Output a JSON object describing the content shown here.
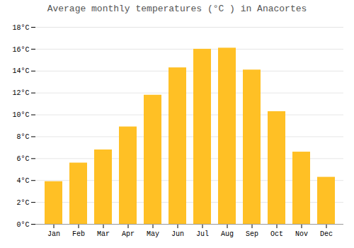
{
  "chart_data": {
    "type": "bar",
    "title": "Average monthly temperatures (°C ) in Anacortes",
    "categories": [
      "Jan",
      "Feb",
      "Mar",
      "Apr",
      "May",
      "Jun",
      "Jul",
      "Aug",
      "Sep",
      "Oct",
      "Nov",
      "Dec"
    ],
    "values": [
      3.9,
      5.6,
      6.8,
      8.9,
      11.8,
      14.3,
      16.0,
      16.1,
      14.1,
      10.3,
      6.6,
      4.3
    ],
    "color": "#FFC025",
    "ylim": [
      0,
      18
    ],
    "yticks": [
      {
        "value": 0,
        "label": "0°C"
      },
      {
        "value": 2,
        "label": "2°C"
      },
      {
        "value": 4,
        "label": "4°C"
      },
      {
        "value": 6,
        "label": "6°C"
      },
      {
        "value": 8,
        "label": "8°C"
      },
      {
        "value": 10,
        "label": "10°C"
      },
      {
        "value": 12,
        "label": "12°C"
      },
      {
        "value": 14,
        "label": "14°C"
      },
      {
        "value": 16,
        "label": "16°C"
      },
      {
        "value": 18,
        "label": "18°C"
      }
    ],
    "grid": true
  }
}
